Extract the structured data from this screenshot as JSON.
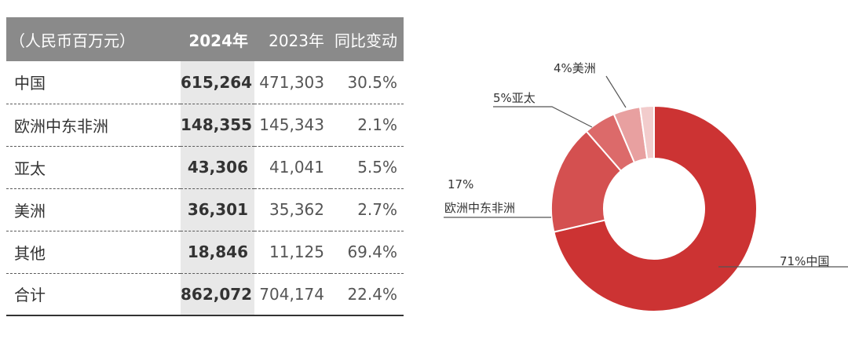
{
  "table": {
    "headers": [
      "（人民币百万元）",
      "2024年",
      "2023年",
      "同比变动"
    ],
    "rows": [
      {
        "region": "中国",
        "y2024": "615,264",
        "y2023": "471,303",
        "change": "30.5%"
      },
      {
        "region": "欧洲中东非洲",
        "y2024": "148,355",
        "y2023": "145,343",
        "change": "2.1%"
      },
      {
        "region": "亚太",
        "y2024": "43,306",
        "y2023": "41,041",
        "change": "5.5%"
      },
      {
        "region": "美洲",
        "y2024": "36,301",
        "y2023": "35,362",
        "change": "2.7%"
      },
      {
        "region": "其他",
        "y2024": "18,846",
        "y2023": "11,125",
        "change": "69.4%"
      },
      {
        "region": "合计",
        "y2024": "862,072",
        "y2023": "704,174",
        "change": "22.4%"
      }
    ]
  },
  "chart_data": {
    "type": "pie",
    "donut": true,
    "categories": [
      "中国",
      "欧洲中东非洲",
      "亚太",
      "美洲",
      "其他"
    ],
    "values": [
      615264,
      148355,
      43306,
      36301,
      18846
    ],
    "labels": [
      {
        "pct": "71%",
        "name": "中国"
      },
      {
        "pct": "17%",
        "name": "欧洲中东非洲"
      },
      {
        "pct": "5%",
        "name": "亚太"
      },
      {
        "pct": "4%",
        "name": "美洲"
      },
      {
        "pct": "",
        "name": ""
      }
    ],
    "colors": [
      "#cc3333",
      "#d45050",
      "#dc6a6a",
      "#e8a0a0",
      "#f2cccc"
    ]
  }
}
